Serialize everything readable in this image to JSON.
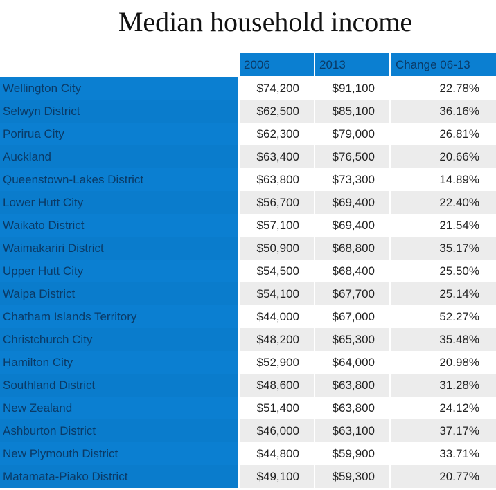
{
  "title": "Median household income",
  "chart_data": {
    "type": "table",
    "title": "Median household income",
    "columns": [
      "",
      "2006",
      "2013",
      "Change 06-13"
    ],
    "rows": [
      {
        "name": "Wellington City",
        "v2006": "$74,200",
        "v2013": "$91,100",
        "change": "22.78%"
      },
      {
        "name": "Selwyn District",
        "v2006": "$62,500",
        "v2013": "$85,100",
        "change": "36.16%"
      },
      {
        "name": "Porirua City",
        "v2006": "$62,300",
        "v2013": "$79,000",
        "change": "26.81%"
      },
      {
        "name": "Auckland",
        "v2006": "$63,400",
        "v2013": "$76,500",
        "change": "20.66%"
      },
      {
        "name": "Queenstown-Lakes District",
        "v2006": "$63,800",
        "v2013": "$73,300",
        "change": "14.89%"
      },
      {
        "name": "Lower Hutt City",
        "v2006": "$56,700",
        "v2013": "$69,400",
        "change": "22.40%"
      },
      {
        "name": "Waikato District",
        "v2006": "$57,100",
        "v2013": "$69,400",
        "change": "21.54%"
      },
      {
        "name": "Waimakariri District",
        "v2006": "$50,900",
        "v2013": "$68,800",
        "change": "35.17%"
      },
      {
        "name": "Upper Hutt City",
        "v2006": "$54,500",
        "v2013": "$68,400",
        "change": "25.50%"
      },
      {
        "name": "Waipa District",
        "v2006": "$54,100",
        "v2013": "$67,700",
        "change": "25.14%"
      },
      {
        "name": "Chatham Islands Territory",
        "v2006": "$44,000",
        "v2013": "$67,000",
        "change": "52.27%"
      },
      {
        "name": "Christchurch City",
        "v2006": "$48,200",
        "v2013": "$65,300",
        "change": "35.48%"
      },
      {
        "name": "Hamilton City",
        "v2006": "$52,900",
        "v2013": "$64,000",
        "change": "20.98%"
      },
      {
        "name": "Southland District",
        "v2006": "$48,600",
        "v2013": "$63,800",
        "change": "31.28%"
      },
      {
        "name": "New Zealand",
        "v2006": "$51,400",
        "v2013": "$63,800",
        "change": "24.12%"
      },
      {
        "name": "Ashburton District",
        "v2006": "$46,000",
        "v2013": "$63,100",
        "change": "37.17%"
      },
      {
        "name": "New Plymouth District",
        "v2006": "$44,800",
        "v2013": "$59,900",
        "change": "33.71%"
      },
      {
        "name": "Matamata-Piako District",
        "v2006": "$49,100",
        "v2013": "$59,300",
        "change": "20.77%"
      }
    ]
  },
  "colors": {
    "header_bg": "#0b7fd1",
    "header_text": "#0a3a66",
    "row_alt_bg": "#ececec"
  }
}
